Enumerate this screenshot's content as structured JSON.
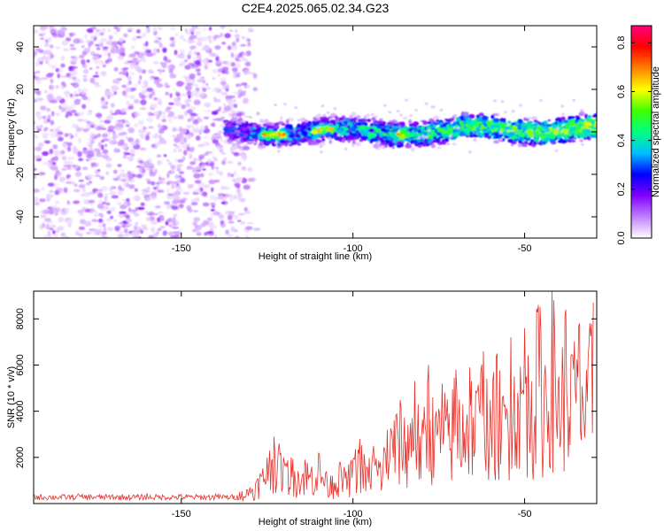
{
  "title": "C2E4.2025.065.02.34.G23",
  "chart_data": [
    {
      "type": "heatmap",
      "title": "C2E4.2025.065.02.34.G23",
      "xlabel": "Height of straight line (km)",
      "ylabel": "Frequency (Hz)",
      "xlim": [
        -193,
        -29
      ],
      "ylim": [
        -50,
        50
      ],
      "x_ticks": [
        -150,
        -100,
        -50
      ],
      "y_ticks": [
        40,
        20,
        0,
        -20,
        -40
      ],
      "x_tick_labels": [
        "-150",
        "-100",
        "-50"
      ],
      "y_tick_labels": [
        "40",
        "20",
        "0",
        "-20",
        "-40"
      ],
      "noise_region": {
        "x_range": [
          -193,
          -130
        ],
        "y_range": [
          -50,
          50
        ],
        "amplitude_range": [
          0.02,
          0.12
        ]
      },
      "signal_band": {
        "x_range": [
          -137,
          -29
        ],
        "center_frequency": 0,
        "half_width": 5
      },
      "peaks": [
        {
          "x": -125,
          "y": -3,
          "amplitude": 0.85
        },
        {
          "x": -121,
          "y": -3,
          "amplitude": 0.88
        },
        {
          "x": -110,
          "y": -1,
          "amplitude": 0.82
        },
        {
          "x": -107,
          "y": -1,
          "amplitude": 0.78
        },
        {
          "x": -86,
          "y": -5,
          "amplitude": 0.85
        },
        {
          "x": -72,
          "y": 0,
          "amplitude": 0.6
        },
        {
          "x": -58,
          "y": 2,
          "amplitude": 0.55
        },
        {
          "x": -46,
          "y": -3,
          "amplitude": 0.5
        }
      ],
      "colorbar": {
        "label": "Normalized spectral amplitude",
        "range": [
          0,
          0.87
        ],
        "ticks": [
          0.0,
          0.2,
          0.4,
          0.6,
          0.8
        ],
        "tick_labels": [
          "0.0",
          "0.2",
          "0.4",
          "0.6",
          "0.8"
        ],
        "colors": [
          "#ffffff",
          "#c080ff",
          "#8000ff",
          "#0000ff",
          "#00c0ff",
          "#00ff80",
          "#40ff00",
          "#ffff00",
          "#ff8000",
          "#ff0000",
          "#ff0080"
        ]
      }
    },
    {
      "type": "line",
      "xlabel": "Height of straight line (km)",
      "ylabel": "SNR (10 * v/v)",
      "xlim": [
        -193,
        -29
      ],
      "ylim": [
        0,
        9200
      ],
      "x_ticks": [
        -150,
        -100,
        -50
      ],
      "y_ticks": [
        2000,
        4000,
        6000,
        8000
      ],
      "x_tick_labels": [
        "-150",
        "-100",
        "-50"
      ],
      "y_tick_labels": [
        "2000",
        "4000",
        "6000",
        "8000"
      ],
      "series": [
        {
          "color": "#e8302a",
          "x": [
            -193,
            -180,
            -170,
            -160,
            -150,
            -140,
            -133,
            -130,
            -127,
            -125,
            -123,
            -121,
            -120,
            -118,
            -116,
            -114,
            -112,
            -110,
            -108,
            -106,
            -104,
            -102,
            -100,
            -98,
            -96,
            -94,
            -92,
            -90,
            -88,
            -86,
            -84,
            -82,
            -80,
            -78,
            -76,
            -74,
            -72,
            -70,
            -68,
            -66,
            -64,
            -62,
            -60,
            -58,
            -56,
            -54,
            -52,
            -50,
            -48,
            -46,
            -44,
            -42,
            -40,
            -38,
            -36,
            -34,
            -32,
            -30
          ],
          "y": [
            400,
            420,
            380,
            450,
            400,
            420,
            500,
            700,
            1300,
            2000,
            2900,
            2200,
            1800,
            2000,
            1400,
            1900,
            1600,
            2200,
            1300,
            1200,
            1700,
            1400,
            1900,
            2800,
            1600,
            2500,
            1800,
            3200,
            3600,
            4200,
            3400,
            5300,
            3000,
            6000,
            3700,
            5200,
            3900,
            5800,
            4300,
            5900,
            4800,
            6600,
            4500,
            6500,
            4200,
            7200,
            4800,
            7600,
            5300,
            8600,
            6000,
            9200,
            5500,
            8400,
            6400,
            7800,
            5800,
            8700
          ]
        }
      ]
    }
  ]
}
